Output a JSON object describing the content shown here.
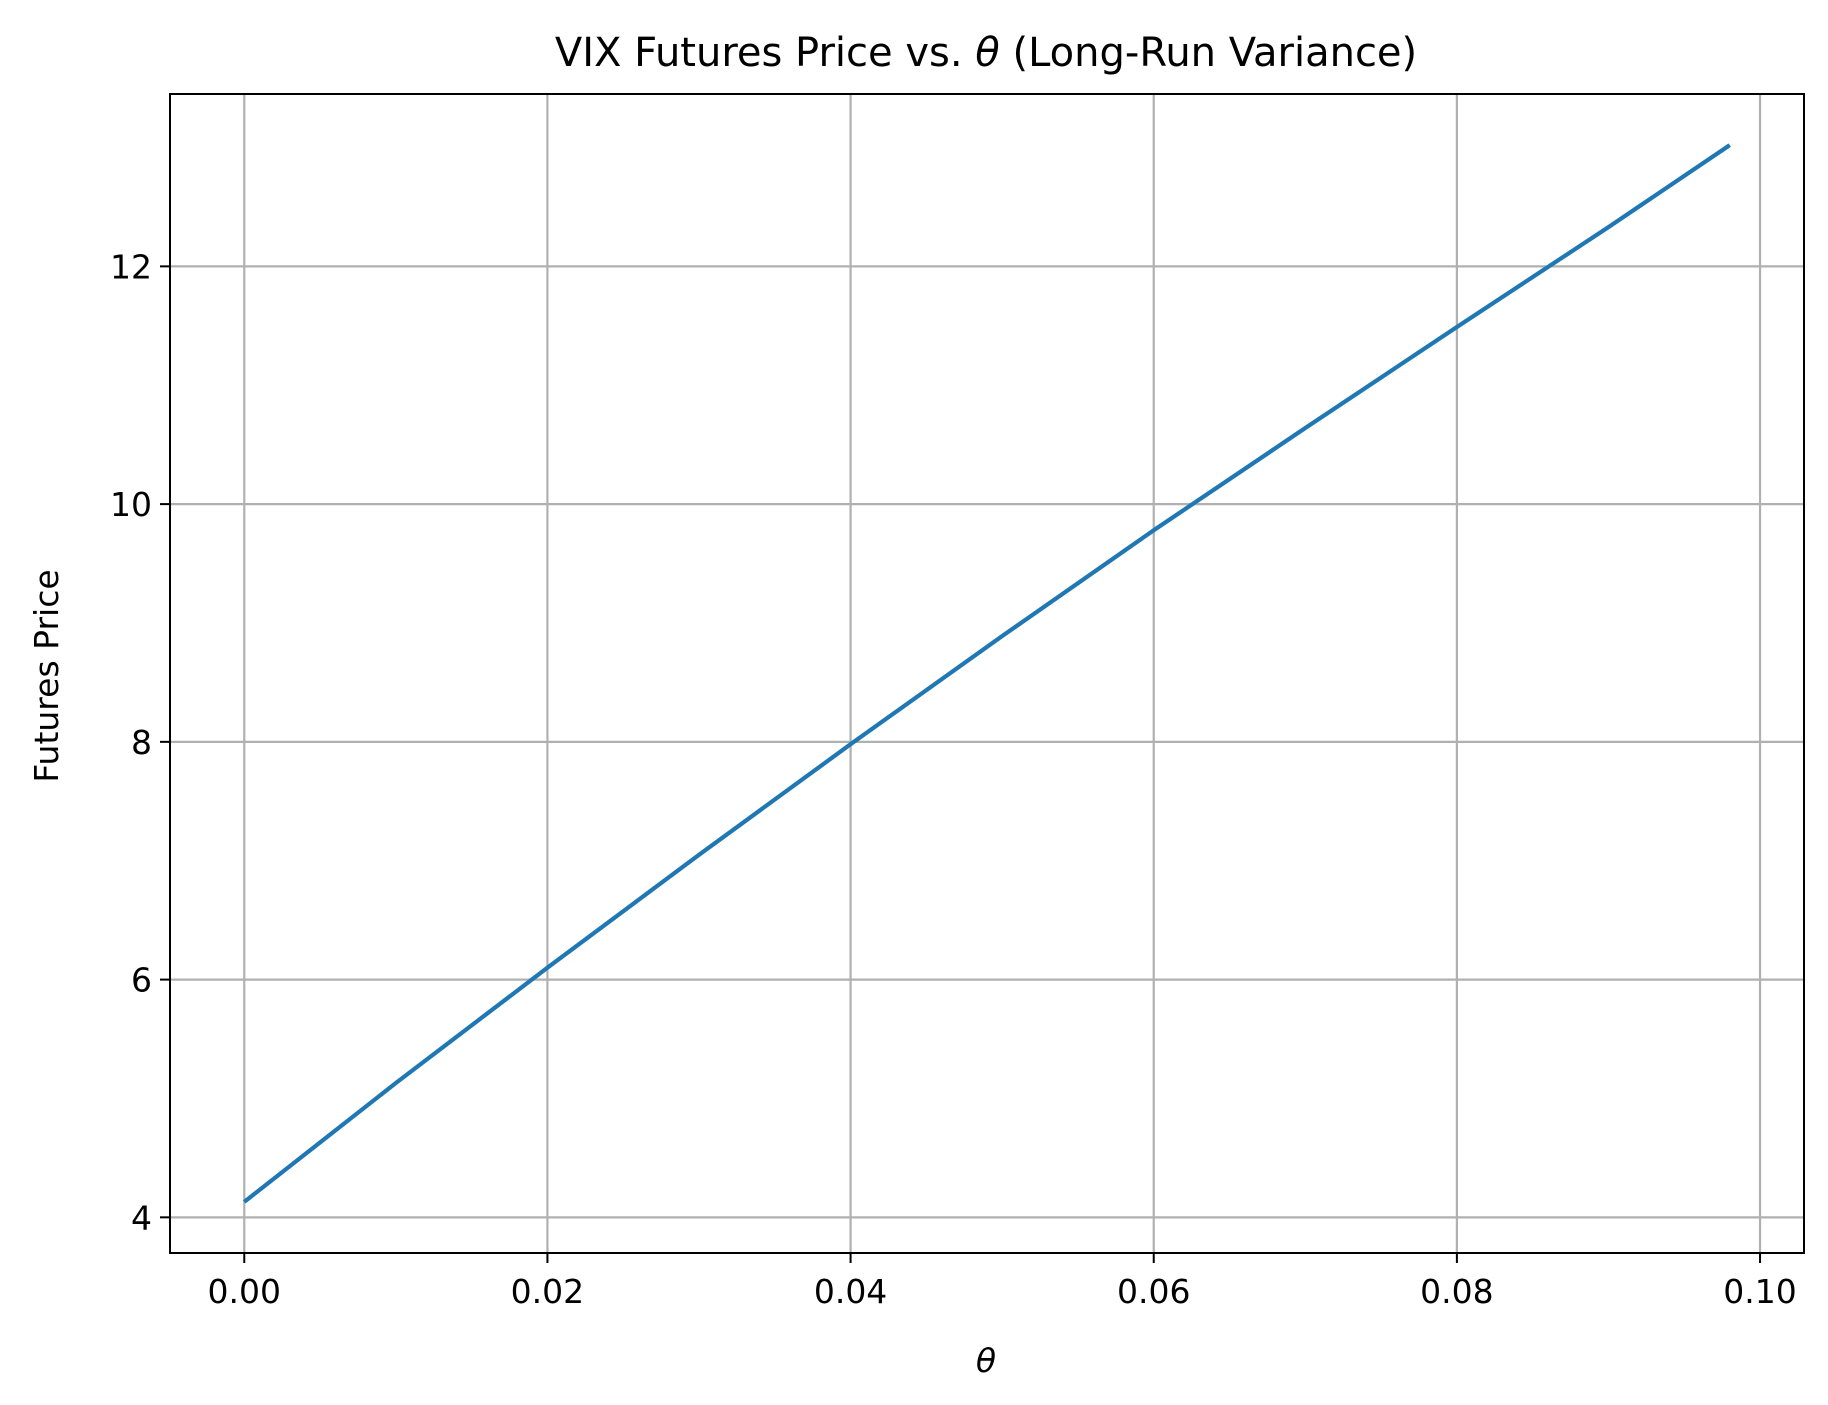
{
  "chart_data": {
    "type": "line",
    "title_parts": [
      "VIX Futures Price vs. ",
      "θ",
      " (Long-Run Variance)"
    ],
    "xlabel": "θ",
    "ylabel": "Futures Price",
    "xlim": [
      -0.0049,
      0.1029
    ],
    "ylim": [
      3.7,
      13.45
    ],
    "x_ticks": [
      0.0,
      0.02,
      0.04,
      0.06,
      0.08,
      0.1
    ],
    "x_tick_labels": [
      "0.00",
      "0.02",
      "0.04",
      "0.06",
      "0.08",
      "0.10"
    ],
    "y_ticks": [
      4,
      6,
      8,
      10,
      12
    ],
    "y_tick_labels": [
      "4",
      "6",
      "8",
      "10",
      "12"
    ],
    "grid": true,
    "series": [
      {
        "color": "#1f77b4",
        "x": [
          0.0,
          0.01,
          0.02,
          0.03,
          0.04,
          0.05,
          0.06,
          0.07,
          0.08,
          0.09,
          0.098
        ],
        "y": [
          4.13,
          5.13,
          6.1,
          7.05,
          7.98,
          8.89,
          9.78,
          10.64,
          11.49,
          12.33,
          13.02
        ]
      }
    ]
  }
}
